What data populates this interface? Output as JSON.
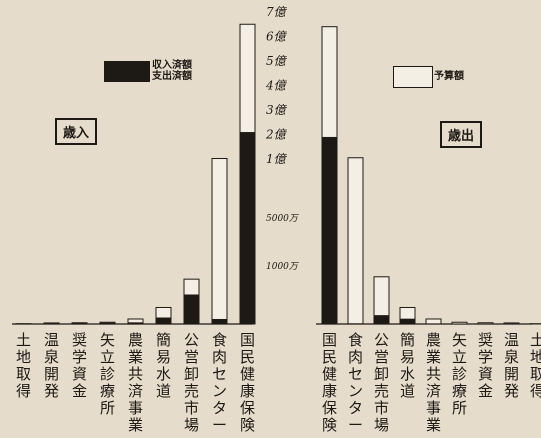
{
  "chart_data": [
    {
      "type": "bar",
      "title": "歳入",
      "categories": [
        "土地取得",
        "温泉開発",
        "奨学資金",
        "矢立診療所",
        "農業共済事業",
        "簡易水道",
        "公営卸売市場",
        "食肉センター",
        "国民健康保険"
      ],
      "series": [
        {
          "name": "予算額",
          "values": [
            5,
            18,
            21,
            30,
            85,
            280,
            760,
            10200,
            65000
          ]
        },
        {
          "name": "収入済額",
          "values": [
            4,
            13,
            17,
            23,
            28,
            110,
            500,
            85,
            21000
          ]
        }
      ],
      "y_axis": {
        "scale": "piecewise: 0–約2000万 (linear), 1億–7億 (linear)"
      }
    },
    {
      "type": "bar",
      "title": "歳出",
      "categories": [
        "国民健康保険",
        "食肉センター",
        "公営卸売市場",
        "簡易水道",
        "農業共済事業",
        "矢立診療所",
        "奨学資金",
        "温泉開発",
        "土地取得"
      ],
      "series": [
        {
          "name": "予算額",
          "values": [
            64000,
            10500,
            800,
            280,
            85,
            30,
            21,
            18,
            5
          ]
        },
        {
          "name": "支出済額",
          "values": [
            19000,
            12,
            150,
            90,
            10,
            8,
            6,
            3,
            2
          ]
        }
      ]
    }
  ],
  "axis": {
    "tick_labels": [
      "7億",
      "6億",
      "5億",
      "4億",
      "3億",
      "2億",
      "1億",
      "5000万",
      "1000万"
    ]
  },
  "legends": {
    "filled_line1": "収入済額",
    "filled_line2": "支出済額",
    "outline": "予算額"
  },
  "tags": {
    "left": "歳入",
    "right": "歳出"
  },
  "colors": {
    "paper": "#e6dccb",
    "ink": "#1d1a16",
    "bar_outline_fill": "#f4efe4"
  }
}
